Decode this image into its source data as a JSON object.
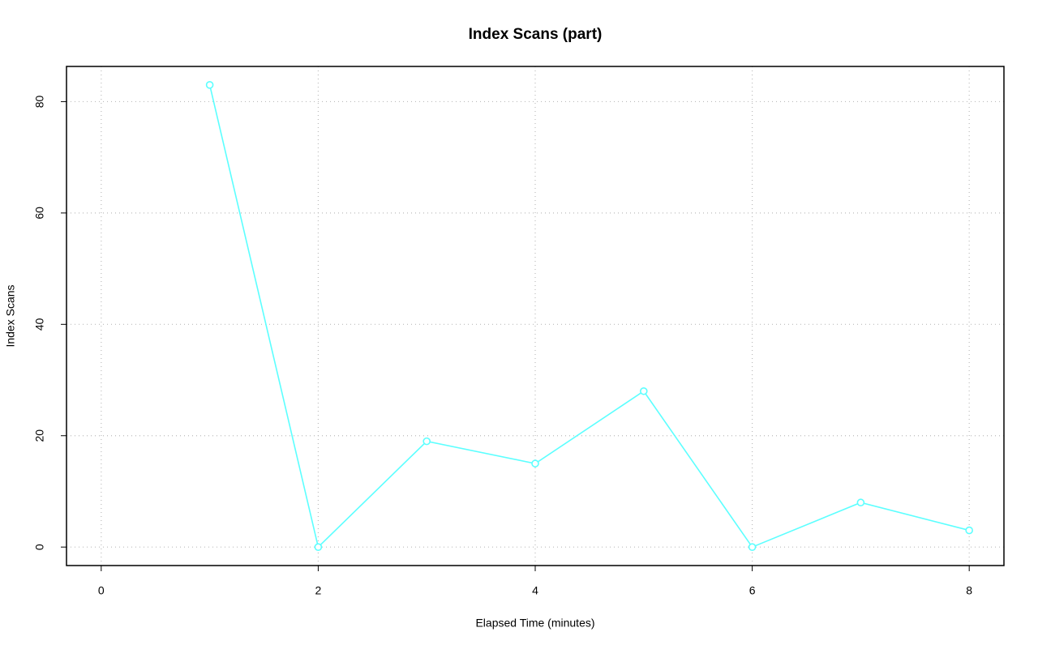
{
  "chart_data": {
    "type": "line",
    "title": "Index Scans (part)",
    "x_label": "Elapsed Time (minutes)",
    "y_label": "Index Scans",
    "x": [
      1,
      2,
      3,
      4,
      5,
      6,
      7,
      8
    ],
    "values": [
      83,
      0,
      19,
      15,
      28,
      0,
      8,
      3
    ],
    "color": "#5cffff",
    "xlim": [
      -0.32,
      8.32
    ],
    "xticks": [
      0,
      2,
      4,
      6,
      8
    ],
    "ylim": [
      -3.32,
      86.32
    ],
    "yticks": [
      0,
      20,
      40,
      60,
      80
    ],
    "grid": true
  }
}
